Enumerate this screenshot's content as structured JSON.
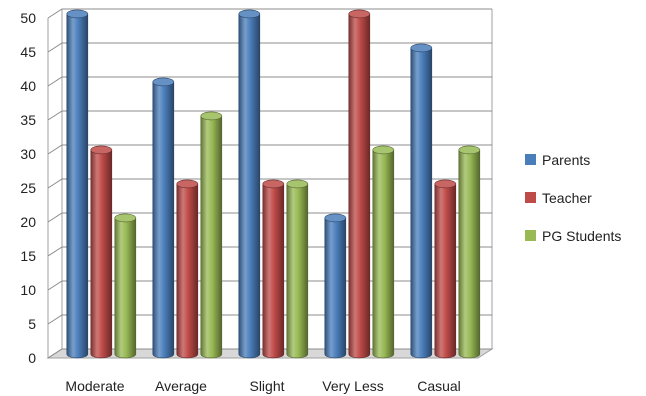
{
  "chart_data": {
    "type": "bar",
    "title": "",
    "xlabel": "",
    "ylabel": "",
    "categories": [
      "Moderate",
      "Average",
      "Slight",
      "Very Less",
      "Casual"
    ],
    "series": [
      {
        "name": "Parents",
        "values": [
          50,
          40,
          50,
          20,
          45
        ],
        "color": "#4a7ebb"
      },
      {
        "name": "Teacher",
        "values": [
          30,
          25,
          25,
          50,
          25
        ],
        "color": "#be4b48"
      },
      {
        "name": "PG Students",
        "values": [
          20,
          35,
          25,
          30,
          30
        ],
        "color": "#98b954"
      }
    ],
    "ylim": [
      0,
      50
    ],
    "yticks": [
      0,
      5,
      10,
      15,
      20,
      25,
      30,
      35,
      40,
      45,
      50
    ],
    "grid": true,
    "style": "3d-cylinder",
    "legend": "right"
  }
}
